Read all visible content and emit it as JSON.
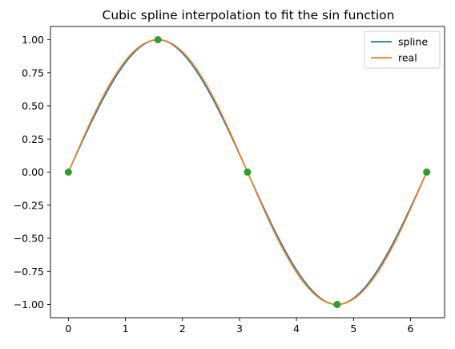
{
  "chart_data": {
    "type": "line",
    "title": "Cubic spline interpolation to fit the sin function",
    "xlabel": "",
    "ylabel": "",
    "xlim": [
      -0.314,
      6.597
    ],
    "ylim": [
      -1.1,
      1.1
    ],
    "xticks": [
      0,
      1,
      2,
      3,
      4,
      5,
      6
    ],
    "xtick_labels": [
      "0",
      "1",
      "2",
      "3",
      "4",
      "5",
      "6"
    ],
    "yticks": [
      1.0,
      0.75,
      0.5,
      0.25,
      0.0,
      -0.25,
      -0.5,
      -0.75,
      -1.0
    ],
    "ytick_labels": [
      "1.00",
      "0.75",
      "0.50",
      "0.25",
      "0.00",
      "−0.25",
      "−0.50",
      "−0.75",
      "−1.00"
    ],
    "grid": false,
    "legend_position": "top-right",
    "colors": {
      "spline": "#1f77b4",
      "real": "#ff7f0e",
      "knots": "#2ca02c"
    },
    "series": [
      {
        "name": "spline",
        "kind": "line",
        "function": "natural cubic spline through knots",
        "x_range": [
          0,
          6.2832
        ]
      },
      {
        "name": "real",
        "kind": "line",
        "function": "sin(x)",
        "x_range": [
          0,
          6.2832
        ]
      },
      {
        "kind": "scatter",
        "x": [
          0,
          1.5708,
          3.1416,
          4.7124,
          6.2832
        ],
        "y": [
          0,
          1,
          0,
          -1,
          0
        ]
      }
    ]
  }
}
